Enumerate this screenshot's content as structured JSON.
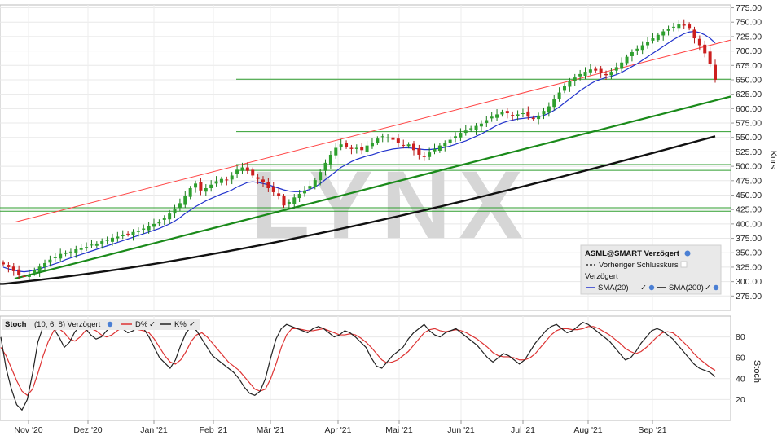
{
  "chart_data": [
    {
      "type": "candlestick",
      "title": "",
      "ylabel": "Kurs",
      "ylim": [
        250,
        780
      ],
      "yticks": [
        275,
        300,
        325,
        350,
        375,
        400,
        425,
        450,
        475,
        500,
        525,
        550,
        575,
        600,
        625,
        650,
        675,
        700,
        725,
        750,
        775
      ],
      "ytick_labels": [
        "275.00",
        "300.00",
        "325.00",
        "350.00",
        "375.00",
        "400.00",
        "425.00",
        "450.00",
        "475.00",
        "500.00",
        "525.00",
        "550.00",
        "575.00",
        "600.00",
        "625.00",
        "650.00",
        "675.00",
        "700.00",
        "725.00",
        "750.00",
        "775.00"
      ],
      "xlabels": [
        "Nov '20",
        "Dez '20",
        "Jan '21",
        "Feb '21",
        "Mär '21",
        "Apr '21",
        "Mai '21",
        "Jun '21",
        "Jul '21",
        "Aug '21",
        "Sep '21"
      ],
      "watermark": "LYNX",
      "legend": {
        "title": "ASML@SMART Verzögert",
        "prev_close": "Vorheriger Schlusskurs",
        "delayed": "Verzögert",
        "series1": "SMA(20)",
        "series2": "SMA(200)"
      },
      "close_series": [
        330,
        325,
        318,
        312,
        308,
        312,
        320,
        326,
        332,
        338,
        342,
        348,
        350,
        352,
        356,
        358,
        360,
        364,
        366,
        370,
        372,
        376,
        378,
        380,
        382,
        386,
        388,
        392,
        396,
        400,
        404,
        410,
        418,
        426,
        436,
        448,
        462,
        470,
        458,
        462,
        468,
        474,
        478,
        476,
        484,
        494,
        498,
        492,
        484,
        478,
        472,
        462,
        455,
        448,
        432,
        438,
        446,
        452,
        458,
        466,
        476,
        490,
        506,
        520,
        532,
        538,
        534,
        530,
        532,
        528,
        536,
        540,
        548,
        552,
        550,
        546,
        540,
        536,
        538,
        528,
        520,
        516,
        524,
        530,
        536,
        540,
        546,
        552,
        558,
        562,
        566,
        570,
        574,
        580,
        586,
        590,
        594,
        592,
        588,
        590,
        592,
        586,
        582,
        588,
        596,
        604,
        616,
        628,
        640,
        648,
        654,
        660,
        664,
        668,
        666,
        662,
        658,
        664,
        672,
        680,
        690,
        698,
        704,
        710,
        716,
        722,
        728,
        734,
        738,
        742,
        746,
        744,
        740,
        722,
        710,
        696,
        678,
        650
      ],
      "sma20": [
        325,
        322,
        320,
        318,
        317,
        318,
        320,
        322,
        325,
        328,
        331,
        334,
        338,
        341,
        344,
        347,
        350,
        353,
        356,
        359,
        362,
        365,
        368,
        371,
        374,
        377,
        380,
        383,
        386,
        389,
        392,
        396,
        400,
        405,
        411,
        418,
        424,
        430,
        435,
        440,
        444,
        448,
        452,
        455,
        459,
        464,
        468,
        472,
        473,
        472,
        470,
        468,
        465,
        462,
        459,
        457,
        456,
        456,
        457,
        460,
        464,
        470,
        477,
        484,
        491,
        498,
        503,
        508,
        512,
        515,
        518,
        520,
        523,
        526,
        528,
        530,
        531,
        532,
        532,
        531,
        530,
        529,
        529,
        530,
        531,
        533,
        535,
        538,
        541,
        544,
        548,
        552,
        556,
        561,
        566,
        571,
        575,
        578,
        580,
        582,
        583,
        584,
        585,
        586,
        588,
        592,
        597,
        603,
        610,
        617,
        624,
        631,
        637,
        643,
        648,
        651,
        654,
        656,
        659,
        663,
        668,
        673,
        678,
        684,
        690,
        696,
        702,
        708,
        714,
        720,
        725,
        730,
        733,
        734,
        732,
        728,
        722,
        714
      ],
      "sma200_start": 296,
      "sma200_end": 552,
      "trend_upper": [
        403,
        719
      ],
      "trend_lower": [
        305,
        621
      ],
      "hlines_green": [
        651,
        560,
        503,
        493,
        428,
        422
      ]
    },
    {
      "type": "line",
      "title": "Stoch",
      "ylabel": "Stoch",
      "ylim": [
        0,
        100
      ],
      "yticks": [
        20,
        40,
        60,
        80
      ],
      "legend": {
        "label": "Stoch",
        "params": "(10, 6, 8) Verzögert",
        "d_name": "D%",
        "k_name": "K%"
      },
      "k_series": [
        80,
        50,
        30,
        15,
        10,
        20,
        45,
        75,
        90,
        92,
        88,
        80,
        70,
        75,
        85,
        90,
        88,
        82,
        78,
        80,
        86,
        90,
        92,
        88,
        84,
        86,
        90,
        88,
        80,
        70,
        60,
        55,
        50,
        58,
        72,
        84,
        90,
        86,
        78,
        70,
        62,
        58,
        54,
        50,
        46,
        40,
        32,
        26,
        24,
        28,
        40,
        60,
        78,
        88,
        92,
        90,
        88,
        86,
        84,
        88,
        90,
        88,
        84,
        80,
        82,
        86,
        84,
        80,
        75,
        70,
        60,
        52,
        50,
        56,
        62,
        66,
        70,
        78,
        84,
        88,
        92,
        86,
        82,
        80,
        84,
        86,
        88,
        84,
        80,
        76,
        72,
        66,
        60,
        56,
        60,
        64,
        62,
        58,
        54,
        58,
        66,
        74,
        80,
        86,
        90,
        92,
        88,
        84,
        86,
        90,
        94,
        92,
        88,
        84,
        80,
        76,
        70,
        64,
        58,
        60,
        66,
        74,
        80,
        86,
        88,
        86,
        82,
        78,
        72,
        66,
        60,
        54,
        50,
        48,
        46,
        42
      ],
      "d_series": [
        70,
        62,
        50,
        38,
        28,
        24,
        30,
        45,
        62,
        76,
        86,
        88,
        84,
        78,
        76,
        80,
        86,
        88,
        86,
        82,
        80,
        82,
        86,
        89,
        90,
        88,
        87,
        86,
        84,
        78,
        70,
        62,
        56,
        54,
        58,
        66,
        76,
        82,
        84,
        80,
        74,
        68,
        62,
        56,
        52,
        48,
        42,
        36,
        30,
        28,
        30,
        40,
        54,
        70,
        82,
        88,
        88,
        87,
        86,
        86,
        87,
        88,
        86,
        84,
        82,
        82,
        83,
        82,
        79,
        75,
        70,
        64,
        58,
        55,
        56,
        58,
        62,
        66,
        72,
        78,
        84,
        87,
        88,
        86,
        85,
        86,
        87,
        86,
        84,
        81,
        78,
        74,
        70,
        65,
        62,
        61,
        61,
        60,
        58,
        58,
        60,
        64,
        70,
        76,
        82,
        86,
        88,
        88,
        87,
        87,
        88,
        90,
        90,
        88,
        85,
        82,
        78,
        74,
        69,
        66,
        64,
        66,
        70,
        75,
        80,
        84,
        85,
        84,
        80,
        75,
        70,
        64,
        59,
        55,
        51,
        48
      ]
    }
  ]
}
